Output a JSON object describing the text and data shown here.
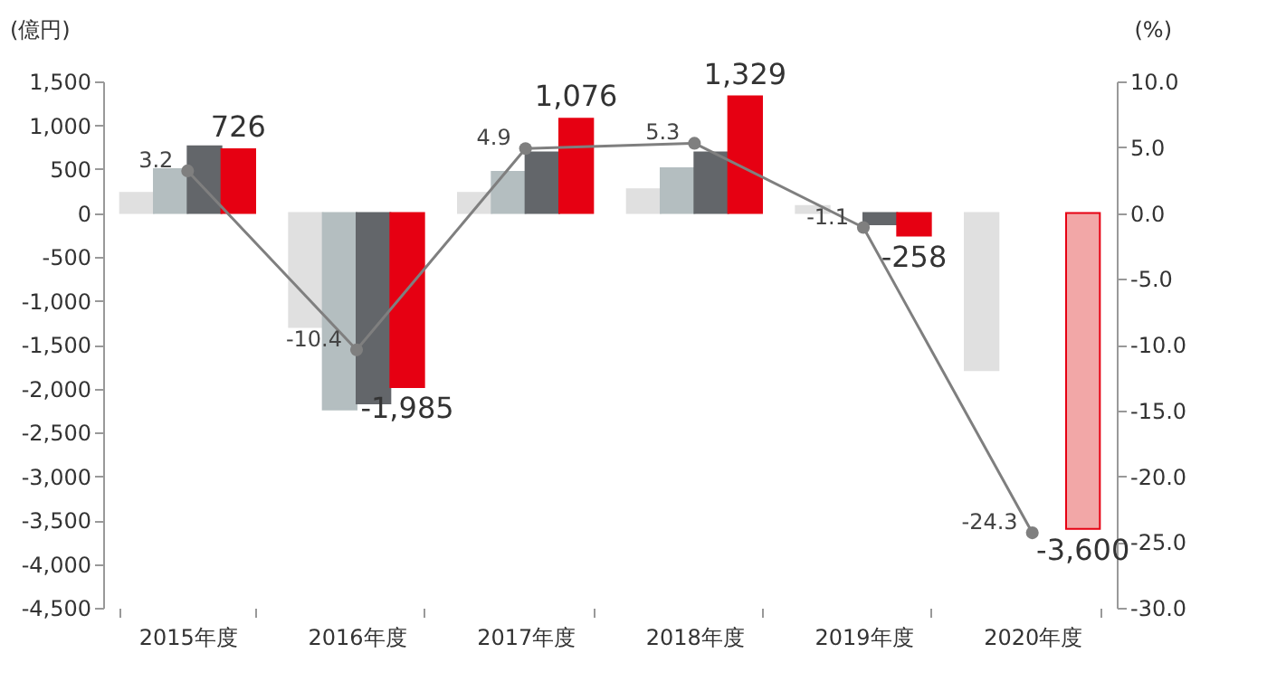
{
  "chart_data": {
    "type": "bar",
    "categories": [
      "2015年度",
      "2016年度",
      "2017年度",
      "2018年度",
      "2019年度",
      "2020年度"
    ],
    "ylabel": "(億円)",
    "y2label": "(%)",
    "series": [
      {
        "color": "#e0e0e0",
        "values": [
          230,
          -1300,
          230,
          270,
          80,
          -1790
        ]
      },
      {
        "color": "#b4bec0",
        "values": [
          500,
          -2240,
          470,
          510,
          null,
          null
        ]
      },
      {
        "color": "#63666a",
        "values": [
          760,
          -2170,
          690,
          690,
          -130,
          null
        ]
      },
      {
        "color": "#e60012",
        "colors": [
          "#e60012",
          "#e60012",
          "#e60012",
          "#e60012",
          "#e60012",
          "#f2a7a7"
        ],
        "values": [
          726,
          -1985,
          1076,
          1329,
          -258,
          -3600
        ],
        "value_labels": [
          "726",
          "-1,985",
          "1,076",
          "1,329",
          "-258",
          "-3,600"
        ]
      },
      {
        "type": "line",
        "axis": "y2",
        "color": "#7f7f7f",
        "marker": "circle",
        "values": [
          3.2,
          -10.4,
          4.9,
          5.3,
          -1.1,
          -24.3
        ],
        "value_labels": [
          "3.2",
          "-10.4",
          "4.9",
          "5.3",
          "-1.1",
          "-24.3"
        ]
      }
    ],
    "ylim": [
      -4500,
      1500
    ],
    "yticks": [
      {
        "value": 1500,
        "label": "1,500"
      },
      {
        "value": 1000,
        "label": "1,000"
      },
      500,
      0,
      -500,
      {
        "value": -1000,
        "label": "-1,000"
      },
      {
        "value": -1500,
        "label": "-1,500"
      },
      {
        "value": -2000,
        "label": "-2,000"
      },
      {
        "value": -2500,
        "label": "-2,500"
      },
      {
        "value": -3000,
        "label": "-3,000"
      },
      {
        "value": -3500,
        "label": "-3,500"
      },
      {
        "value": -4000,
        "label": "-4,000"
      },
      {
        "value": -4500,
        "label": "-4,500"
      }
    ],
    "y2lim": [
      -30,
      10
    ],
    "y2ticks": [
      {
        "value": 10,
        "label": "10.0"
      },
      {
        "value": 5,
        "label": "5.0"
      },
      {
        "value": 0,
        "label": "0.0"
      },
      {
        "value": -5,
        "label": "-5.0"
      },
      {
        "value": -10,
        "label": "-10.0"
      },
      {
        "value": -15,
        "label": "-15.0"
      },
      {
        "value": -20,
        "label": "-20.0"
      },
      {
        "value": -25,
        "label": "-25.0"
      },
      {
        "value": -30,
        "label": "-30.0"
      }
    ],
    "grid": false
  }
}
